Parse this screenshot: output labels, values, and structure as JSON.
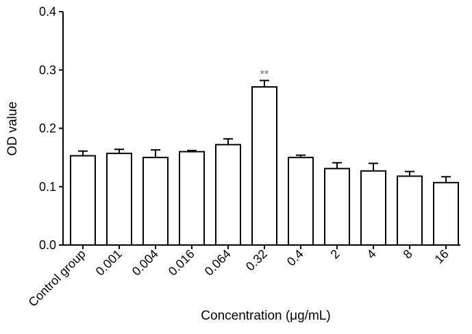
{
  "chart_data": {
    "type": "bar",
    "title": "",
    "xlabel": "Concentration (μg/mL)",
    "ylabel": "OD value",
    "ylim": [
      0,
      0.4
    ],
    "yticks": [
      "0.0",
      "0.1",
      "0.2",
      "0.3",
      "0.4"
    ],
    "grid": false,
    "categories": [
      "Control group",
      "0.001",
      "0.004",
      "0.016",
      "0.064",
      "0.32",
      "0.4",
      "2",
      "4",
      "8",
      "16"
    ],
    "values": [
      0.153,
      0.157,
      0.15,
      0.16,
      0.172,
      0.271,
      0.15,
      0.131,
      0.127,
      0.118,
      0.107
    ],
    "errors": [
      0.008,
      0.007,
      0.013,
      0.002,
      0.01,
      0.011,
      0.004,
      0.01,
      0.013,
      0.008,
      0.01
    ],
    "annotations": [
      {
        "category": "0.32",
        "text": "**"
      }
    ],
    "colors": {
      "bar_fill": "#ffffff",
      "bar_stroke": "#000000",
      "annotation": "#666666"
    }
  }
}
